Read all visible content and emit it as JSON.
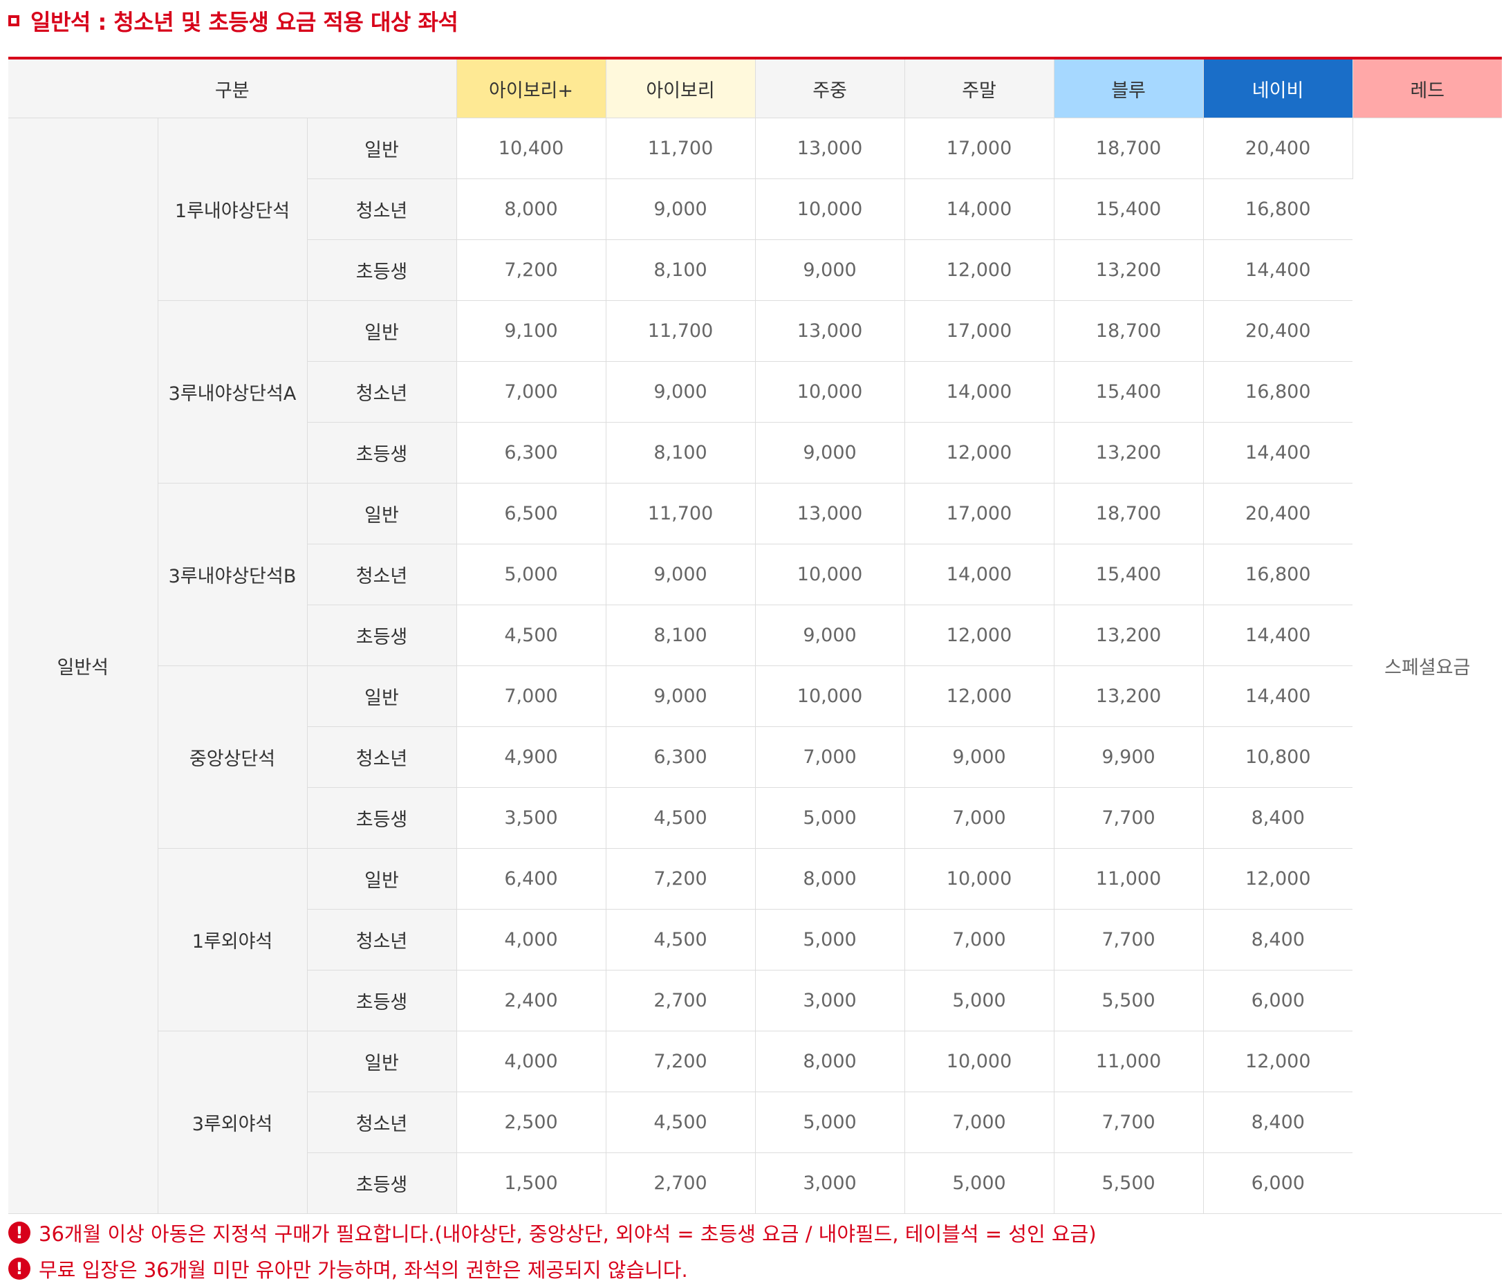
{
  "title": "일반석 : 청소년 및 초등생 요금 적용 대상 좌석",
  "colors": {
    "accent": "#d7001a",
    "ivory_plus": "#fee994",
    "ivory": "#fff9dc",
    "weekday": "#f5f5f5",
    "weekend": "#f5f5f5",
    "blue": "#a6d8ff",
    "navy": "#1a6ec8",
    "red": "#ffa8a8"
  },
  "header": {
    "category_label": "구분",
    "tiers": [
      "아이보리+",
      "아이보리",
      "주중",
      "주말",
      "블루",
      "네이비",
      "레드"
    ]
  },
  "category": "일반석",
  "red_special": "스페셜요금",
  "groups": [
    {
      "name": "1루내야상단석",
      "rows": [
        {
          "type": "일반",
          "prices": [
            "10,400",
            "11,700",
            "13,000",
            "17,000",
            "18,700",
            "20,400"
          ]
        },
        {
          "type": "청소년",
          "prices": [
            "8,000",
            "9,000",
            "10,000",
            "14,000",
            "15,400",
            "16,800"
          ]
        },
        {
          "type": "초등생",
          "prices": [
            "7,200",
            "8,100",
            "9,000",
            "12,000",
            "13,200",
            "14,400"
          ]
        }
      ]
    },
    {
      "name": "3루내야상단석A",
      "rows": [
        {
          "type": "일반",
          "prices": [
            "9,100",
            "11,700",
            "13,000",
            "17,000",
            "18,700",
            "20,400"
          ]
        },
        {
          "type": "청소년",
          "prices": [
            "7,000",
            "9,000",
            "10,000",
            "14,000",
            "15,400",
            "16,800"
          ]
        },
        {
          "type": "초등생",
          "prices": [
            "6,300",
            "8,100",
            "9,000",
            "12,000",
            "13,200",
            "14,400"
          ]
        }
      ]
    },
    {
      "name": "3루내야상단석B",
      "rows": [
        {
          "type": "일반",
          "prices": [
            "6,500",
            "11,700",
            "13,000",
            "17,000",
            "18,700",
            "20,400"
          ]
        },
        {
          "type": "청소년",
          "prices": [
            "5,000",
            "9,000",
            "10,000",
            "14,000",
            "15,400",
            "16,800"
          ]
        },
        {
          "type": "초등생",
          "prices": [
            "4,500",
            "8,100",
            "9,000",
            "12,000",
            "13,200",
            "14,400"
          ]
        }
      ]
    },
    {
      "name": "중앙상단석",
      "rows": [
        {
          "type": "일반",
          "prices": [
            "7,000",
            "9,000",
            "10,000",
            "12,000",
            "13,200",
            "14,400"
          ]
        },
        {
          "type": "청소년",
          "prices": [
            "4,900",
            "6,300",
            "7,000",
            "9,000",
            "9,900",
            "10,800"
          ]
        },
        {
          "type": "초등생",
          "prices": [
            "3,500",
            "4,500",
            "5,000",
            "7,000",
            "7,700",
            "8,400"
          ]
        }
      ]
    },
    {
      "name": "1루외야석",
      "rows": [
        {
          "type": "일반",
          "prices": [
            "6,400",
            "7,200",
            "8,000",
            "10,000",
            "11,000",
            "12,000"
          ]
        },
        {
          "type": "청소년",
          "prices": [
            "4,000",
            "4,500",
            "5,000",
            "7,000",
            "7,700",
            "8,400"
          ]
        },
        {
          "type": "초등생",
          "prices": [
            "2,400",
            "2,700",
            "3,000",
            "5,000",
            "5,500",
            "6,000"
          ]
        }
      ]
    },
    {
      "name": "3루외야석",
      "rows": [
        {
          "type": "일반",
          "prices": [
            "4,000",
            "7,200",
            "8,000",
            "10,000",
            "11,000",
            "12,000"
          ]
        },
        {
          "type": "청소년",
          "prices": [
            "2,500",
            "4,500",
            "5,000",
            "7,000",
            "7,700",
            "8,400"
          ]
        },
        {
          "type": "초등생",
          "prices": [
            "1,500",
            "2,700",
            "3,000",
            "5,000",
            "5,500",
            "6,000"
          ]
        }
      ]
    }
  ],
  "notes": [
    "36개월 이상 아동은 지정석 구매가 필요합니다.(내야상단, 중앙상단, 외야석 = 초등생 요금 / 내야필드, 테이블석 = 성인 요금)",
    "무료 입장은 36개월 미만 유아만 가능하며, 좌석의 권한은 제공되지 않습니다."
  ],
  "note_icon": "exclamation-circle-icon"
}
